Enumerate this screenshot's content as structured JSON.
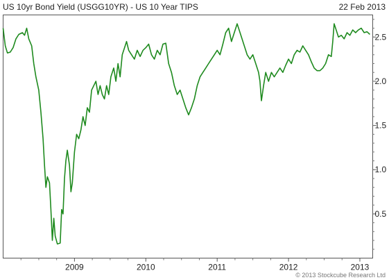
{
  "chart_data": {
    "type": "line",
    "title": "US 10yr Bond Yield (USGG10YR) - US 10 Year TIPS",
    "date": "22 Feb 2013",
    "copyright": "© 2013 Stockcube Research Ltd",
    "xlabel": "",
    "ylabel": "",
    "x_ticks": [
      "2009",
      "2010",
      "2011",
      "2012",
      "2013"
    ],
    "y_ticks": [
      "0.5",
      "1.0",
      "1.5",
      "2.0",
      "2.5"
    ],
    "y_tick_values": [
      0.5,
      1.0,
      1.5,
      2.0,
      2.5
    ],
    "ylim": [
      0.0,
      2.75
    ],
    "xlim": [
      2008.0,
      2013.18
    ],
    "grid": false,
    "y_axis_side": "right",
    "line_color": "#1e8a1e",
    "series": [
      {
        "values": [
          [
            2008.0,
            2.6
          ],
          [
            2008.03,
            2.4
          ],
          [
            2008.06,
            2.32
          ],
          [
            2008.1,
            2.33
          ],
          [
            2008.14,
            2.38
          ],
          [
            2008.18,
            2.48
          ],
          [
            2008.22,
            2.53
          ],
          [
            2008.27,
            2.55
          ],
          [
            2008.3,
            2.52
          ],
          [
            2008.33,
            2.6
          ],
          [
            2008.36,
            2.48
          ],
          [
            2008.4,
            2.4
          ],
          [
            2008.43,
            2.2
          ],
          [
            2008.46,
            2.05
          ],
          [
            2008.5,
            1.9
          ],
          [
            2008.53,
            1.65
          ],
          [
            2008.56,
            1.35
          ],
          [
            2008.58,
            1.05
          ],
          [
            2008.6,
            0.8
          ],
          [
            2008.62,
            0.92
          ],
          [
            2008.65,
            0.85
          ],
          [
            2008.67,
            0.55
          ],
          [
            2008.69,
            0.2
          ],
          [
            2008.71,
            0.45
          ],
          [
            2008.73,
            0.25
          ],
          [
            2008.76,
            0.16
          ],
          [
            2008.8,
            0.17
          ],
          [
            2008.82,
            0.55
          ],
          [
            2008.84,
            0.5
          ],
          [
            2008.86,
            0.9
          ],
          [
            2008.88,
            1.1
          ],
          [
            2008.9,
            1.22
          ],
          [
            2008.93,
            1.05
          ],
          [
            2008.95,
            0.75
          ],
          [
            2008.97,
            0.85
          ],
          [
            2009.0,
            1.2
          ],
          [
            2009.03,
            1.4
          ],
          [
            2009.06,
            1.35
          ],
          [
            2009.09,
            1.45
          ],
          [
            2009.12,
            1.6
          ],
          [
            2009.15,
            1.5
          ],
          [
            2009.18,
            1.7
          ],
          [
            2009.21,
            1.65
          ],
          [
            2009.24,
            1.9
          ],
          [
            2009.27,
            1.95
          ],
          [
            2009.3,
            2.0
          ],
          [
            2009.33,
            1.85
          ],
          [
            2009.36,
            1.95
          ],
          [
            2009.39,
            1.85
          ],
          [
            2009.42,
            1.8
          ],
          [
            2009.45,
            1.95
          ],
          [
            2009.48,
            1.85
          ],
          [
            2009.51,
            2.05
          ],
          [
            2009.55,
            2.15
          ],
          [
            2009.58,
            2.0
          ],
          [
            2009.61,
            2.2
          ],
          [
            2009.64,
            2.05
          ],
          [
            2009.67,
            2.3
          ],
          [
            2009.71,
            2.4
          ],
          [
            2009.73,
            2.45
          ],
          [
            2009.76,
            2.35
          ],
          [
            2009.8,
            2.3
          ],
          [
            2009.84,
            2.25
          ],
          [
            2009.88,
            2.35
          ],
          [
            2009.92,
            2.28
          ],
          [
            2009.96,
            2.35
          ],
          [
            2010.0,
            2.38
          ],
          [
            2010.04,
            2.42
          ],
          [
            2010.08,
            2.3
          ],
          [
            2010.12,
            2.25
          ],
          [
            2010.16,
            2.35
          ],
          [
            2010.2,
            2.3
          ],
          [
            2010.24,
            2.42
          ],
          [
            2010.28,
            2.43
          ],
          [
            2010.32,
            2.2
          ],
          [
            2010.36,
            2.1
          ],
          [
            2010.4,
            1.95
          ],
          [
            2010.44,
            1.85
          ],
          [
            2010.48,
            1.9
          ],
          [
            2010.52,
            1.8
          ],
          [
            2010.56,
            1.7
          ],
          [
            2010.6,
            1.62
          ],
          [
            2010.64,
            1.7
          ],
          [
            2010.68,
            1.8
          ],
          [
            2010.72,
            1.95
          ],
          [
            2010.76,
            2.05
          ],
          [
            2010.8,
            2.1
          ],
          [
            2010.84,
            2.15
          ],
          [
            2010.88,
            2.2
          ],
          [
            2010.92,
            2.25
          ],
          [
            2010.96,
            2.3
          ],
          [
            2011.0,
            2.35
          ],
          [
            2011.04,
            2.3
          ],
          [
            2011.08,
            2.42
          ],
          [
            2011.12,
            2.55
          ],
          [
            2011.16,
            2.6
          ],
          [
            2011.2,
            2.45
          ],
          [
            2011.24,
            2.55
          ],
          [
            2011.28,
            2.65
          ],
          [
            2011.3,
            2.6
          ],
          [
            2011.34,
            2.5
          ],
          [
            2011.38,
            2.4
          ],
          [
            2011.42,
            2.3
          ],
          [
            2011.46,
            2.25
          ],
          [
            2011.5,
            2.3
          ],
          [
            2011.54,
            2.2
          ],
          [
            2011.58,
            2.1
          ],
          [
            2011.6,
            2.0
          ],
          [
            2011.62,
            1.78
          ],
          [
            2011.65,
            1.95
          ],
          [
            2011.68,
            2.1
          ],
          [
            2011.72,
            2.0
          ],
          [
            2011.76,
            2.1
          ],
          [
            2011.8,
            2.05
          ],
          [
            2011.84,
            2.1
          ],
          [
            2011.88,
            2.15
          ],
          [
            2011.92,
            2.1
          ],
          [
            2011.96,
            2.18
          ],
          [
            2012.0,
            2.25
          ],
          [
            2012.04,
            2.2
          ],
          [
            2012.08,
            2.3
          ],
          [
            2012.12,
            2.35
          ],
          [
            2012.16,
            2.33
          ],
          [
            2012.2,
            2.4
          ],
          [
            2012.24,
            2.35
          ],
          [
            2012.28,
            2.3
          ],
          [
            2012.32,
            2.22
          ],
          [
            2012.36,
            2.15
          ],
          [
            2012.4,
            2.12
          ],
          [
            2012.44,
            2.12
          ],
          [
            2012.48,
            2.15
          ],
          [
            2012.52,
            2.2
          ],
          [
            2012.56,
            2.3
          ],
          [
            2012.6,
            2.28
          ],
          [
            2012.62,
            2.45
          ],
          [
            2012.64,
            2.65
          ],
          [
            2012.66,
            2.6
          ],
          [
            2012.7,
            2.5
          ],
          [
            2012.74,
            2.52
          ],
          [
            2012.78,
            2.48
          ],
          [
            2012.82,
            2.55
          ],
          [
            2012.86,
            2.52
          ],
          [
            2012.9,
            2.58
          ],
          [
            2012.94,
            2.55
          ],
          [
            2012.98,
            2.58
          ],
          [
            2013.02,
            2.6
          ],
          [
            2013.06,
            2.55
          ],
          [
            2013.1,
            2.56
          ],
          [
            2013.14,
            2.53
          ]
        ]
      }
    ]
  }
}
